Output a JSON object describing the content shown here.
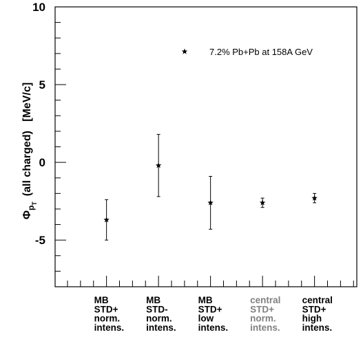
{
  "chart_data": {
    "type": "scatter",
    "ylabel": {
      "symbol": "Φ",
      "subscript": "p",
      "subsubscript": "T",
      "text": "(all charged)   [MeV/c]"
    },
    "ylim": [
      -8,
      10
    ],
    "yticks": [
      {
        "value": 10,
        "label": "10"
      },
      {
        "value": 5,
        "label": "5"
      },
      {
        "value": 0,
        "label": "0"
      },
      {
        "value": -5,
        "label": "-5"
      }
    ],
    "legend": {
      "marker": "★",
      "label": "7.2% Pb+Pb at 158A GeV",
      "position": "top-right"
    },
    "categories": [
      {
        "lines": [
          "MB",
          "STD+",
          "norm.",
          "intens."
        ],
        "color": "#000000"
      },
      {
        "lines": [
          "MB",
          "STD-",
          "norm.",
          "intens."
        ],
        "color": "#000000"
      },
      {
        "lines": [
          "MB",
          "STD+",
          "low",
          "intens."
        ],
        "color": "#000000"
      },
      {
        "lines": [
          "central",
          "STD+",
          "norm.",
          "intens."
        ],
        "color": "#808080"
      },
      {
        "lines": [
          "central",
          "STD+",
          "high",
          "intens."
        ],
        "color": "#000000"
      }
    ],
    "points": [
      {
        "y": -3.7,
        "err_low": 1.3,
        "err_high": 1.3
      },
      {
        "y": -0.2,
        "err_low": 2.0,
        "err_high": 2.0
      },
      {
        "y": -2.6,
        "err_low": 1.7,
        "err_high": 1.7
      },
      {
        "y": -2.6,
        "err_low": 0.3,
        "err_high": 0.3
      },
      {
        "y": -2.3,
        "err_low": 0.3,
        "err_high": 0.3
      }
    ]
  }
}
